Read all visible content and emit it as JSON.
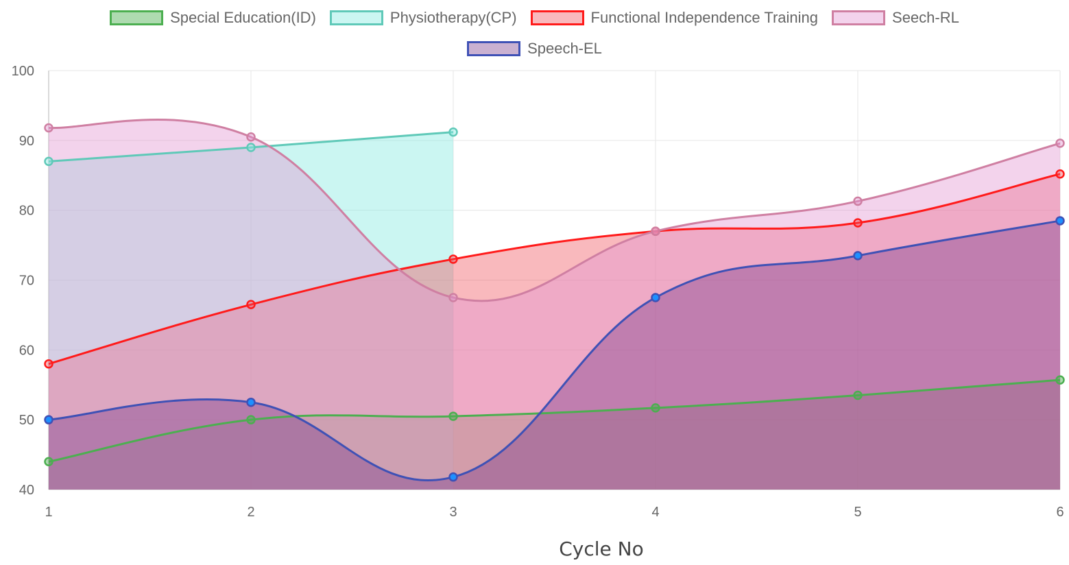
{
  "chart_data": {
    "type": "area",
    "x": [
      1,
      2,
      3,
      4,
      5,
      6
    ],
    "xlabel": "Cycle No",
    "ylabel": "",
    "ylim": [
      40,
      100
    ],
    "yticks": [
      40,
      50,
      60,
      70,
      80,
      90,
      100
    ],
    "grid": true,
    "legend_position": "top",
    "series": [
      {
        "name": "Special Education(ID)",
        "values": [
          44,
          50,
          50.5,
          51.7,
          53.5,
          55.7
        ],
        "color": "#4caf50",
        "fill": "rgba(76,175,80,0.45)"
      },
      {
        "name": "Physiotherapy(CP)",
        "values": [
          87,
          89,
          91.2,
          null,
          null,
          null
        ],
        "color": "#5fc9b8",
        "fill": "rgba(140,236,226,0.45)"
      },
      {
        "name": "Functional Independence Training",
        "values": [
          58,
          66.5,
          73,
          77,
          78.2,
          85.2
        ],
        "color": "#ff1a1a",
        "fill": "rgba(240,80,90,0.40)"
      },
      {
        "name": "Seech-RL",
        "values": [
          91.8,
          90.5,
          67.5,
          77,
          81.3,
          89.6
        ],
        "color": "#cf7fa2",
        "fill": "rgba(226,150,210,0.42)"
      },
      {
        "name": "Speech-EL",
        "values": [
          50,
          52.5,
          41.8,
          67.5,
          73.5,
          78.5
        ],
        "color": "#3f51b5",
        "fill": "rgba(123,60,140,0.40)",
        "point_color": "#1e90ff"
      }
    ]
  }
}
